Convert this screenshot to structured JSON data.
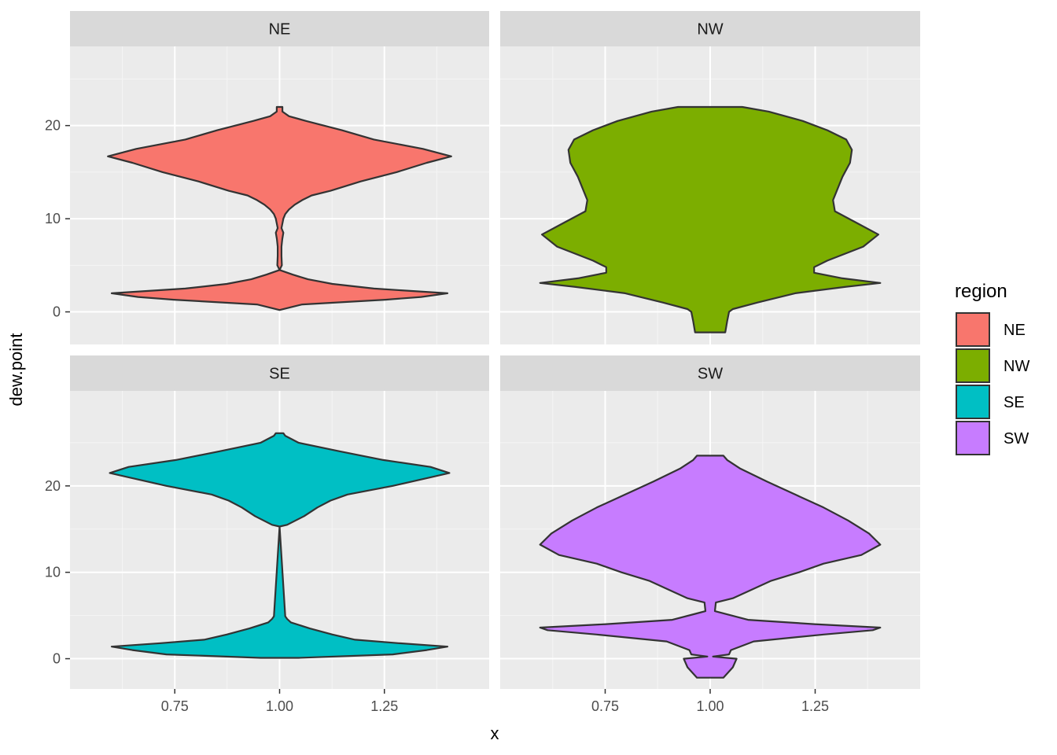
{
  "chart_data": {
    "type": "violin",
    "xlabel": "x",
    "ylabel": "dew.point",
    "x_ticks": [
      "0.75",
      "1.00",
      "1.25"
    ],
    "y_ticks": [
      "0",
      "10",
      "20"
    ],
    "legend": {
      "title": "region",
      "placement": "right",
      "items": [
        {
          "label": "NE",
          "color": "#F8766D"
        },
        {
          "label": "NW",
          "color": "#7CAE00"
        },
        {
          "label": "SE",
          "color": "#00BFC4"
        },
        {
          "label": "SW",
          "color": "#C77CFF"
        }
      ]
    },
    "facets": [
      {
        "label": "NE",
        "fill": "#F8766D",
        "ylim": [
          -3.5,
          28.5
        ],
        "profile": [
          [
            0.2,
            0.0
          ],
          [
            0.8,
            0.12
          ],
          [
            1.3,
            0.56
          ],
          [
            1.6,
            0.75
          ],
          [
            2.0,
            0.89
          ],
          [
            2.5,
            0.5
          ],
          [
            3.0,
            0.28
          ],
          [
            3.5,
            0.15
          ],
          [
            4.0,
            0.07
          ],
          [
            4.5,
            0.0
          ],
          [
            5.0,
            0.012
          ],
          [
            6.0,
            0.01
          ],
          [
            7.0,
            0.01
          ],
          [
            7.8,
            0.014
          ],
          [
            8.5,
            0.02
          ],
          [
            9.0,
            0.01
          ],
          [
            10.0,
            0.02
          ],
          [
            10.5,
            0.03
          ],
          [
            11.0,
            0.05
          ],
          [
            11.5,
            0.08
          ],
          [
            12.0,
            0.12
          ],
          [
            12.5,
            0.17
          ],
          [
            13.0,
            0.27
          ],
          [
            14.0,
            0.43
          ],
          [
            15.0,
            0.62
          ],
          [
            16.0,
            0.78
          ],
          [
            16.7,
            0.91
          ],
          [
            17.5,
            0.76
          ],
          [
            18.5,
            0.5
          ],
          [
            19.5,
            0.33
          ],
          [
            20.5,
            0.14
          ],
          [
            21.0,
            0.05
          ],
          [
            21.5,
            0.015
          ],
          [
            22.0,
            0.015
          ]
        ]
      },
      {
        "label": "NW",
        "fill": "#7CAE00",
        "ylim": [
          -3.5,
          28.5
        ],
        "profile": [
          [
            -2.2,
            0.08
          ],
          [
            -1.0,
            0.09
          ],
          [
            0.0,
            0.1
          ],
          [
            0.3,
            0.12
          ],
          [
            1.0,
            0.25
          ],
          [
            2.0,
            0.45
          ],
          [
            2.7,
            0.72
          ],
          [
            3.1,
            0.9
          ],
          [
            3.6,
            0.7
          ],
          [
            4.2,
            0.55
          ],
          [
            4.8,
            0.55
          ],
          [
            5.5,
            0.62
          ],
          [
            7.0,
            0.81
          ],
          [
            8.3,
            0.89
          ],
          [
            9.5,
            0.78
          ],
          [
            10.8,
            0.66
          ],
          [
            12.0,
            0.65
          ],
          [
            13.0,
            0.67
          ],
          [
            14.5,
            0.7
          ],
          [
            16.0,
            0.74
          ],
          [
            17.4,
            0.75
          ],
          [
            18.5,
            0.72
          ],
          [
            19.5,
            0.62
          ],
          [
            20.5,
            0.49
          ],
          [
            21.5,
            0.31
          ],
          [
            22.0,
            0.17
          ]
        ]
      },
      {
        "label": "SE",
        "fill": "#00BFC4",
        "ylim": [
          -3.5,
          31.0
        ],
        "profile": [
          [
            0.1,
            0.1
          ],
          [
            0.5,
            0.6
          ],
          [
            1.0,
            0.78
          ],
          [
            1.4,
            0.89
          ],
          [
            1.8,
            0.63
          ],
          [
            2.2,
            0.4
          ],
          [
            2.8,
            0.28
          ],
          [
            3.5,
            0.16
          ],
          [
            4.2,
            0.06
          ],
          [
            4.6,
            0.04
          ],
          [
            4.9,
            0.03
          ],
          [
            15.3,
            0.0
          ],
          [
            15.5,
            0.04
          ],
          [
            16.5,
            0.13
          ],
          [
            17.5,
            0.2
          ],
          [
            18.3,
            0.27
          ],
          [
            19.0,
            0.36
          ],
          [
            20.0,
            0.6
          ],
          [
            21.0,
            0.8
          ],
          [
            21.5,
            0.9
          ],
          [
            22.2,
            0.8
          ],
          [
            23.0,
            0.55
          ],
          [
            24.0,
            0.32
          ],
          [
            25.0,
            0.1
          ],
          [
            25.8,
            0.03
          ],
          [
            26.1,
            0.02
          ]
        ]
      },
      {
        "label": "SW",
        "fill": "#C77CFF",
        "ylim": [
          -3.5,
          31.0
        ],
        "profile": [
          [
            -2.2,
            0.07
          ],
          [
            -1.0,
            0.12
          ],
          [
            0.0,
            0.14
          ],
          [
            0.5,
            0.1
          ],
          [
            0.25,
            0.015
          ],
          [
            1.0,
            0.11
          ],
          [
            2.0,
            0.23
          ],
          [
            2.8,
            0.6
          ],
          [
            3.3,
            0.86
          ],
          [
            3.6,
            0.9
          ],
          [
            4.0,
            0.55
          ],
          [
            4.5,
            0.2
          ],
          [
            5.5,
            0.025
          ],
          [
            6.5,
            0.03
          ],
          [
            7.0,
            0.12
          ],
          [
            8.0,
            0.22
          ],
          [
            9.0,
            0.32
          ],
          [
            10.0,
            0.47
          ],
          [
            11.0,
            0.6
          ],
          [
            12.0,
            0.8
          ],
          [
            13.2,
            0.9
          ],
          [
            14.5,
            0.84
          ],
          [
            16.0,
            0.73
          ],
          [
            17.5,
            0.6
          ],
          [
            19.0,
            0.45
          ],
          [
            20.5,
            0.3
          ],
          [
            22.0,
            0.16
          ],
          [
            23.0,
            0.09
          ],
          [
            23.5,
            0.07
          ]
        ]
      }
    ]
  }
}
